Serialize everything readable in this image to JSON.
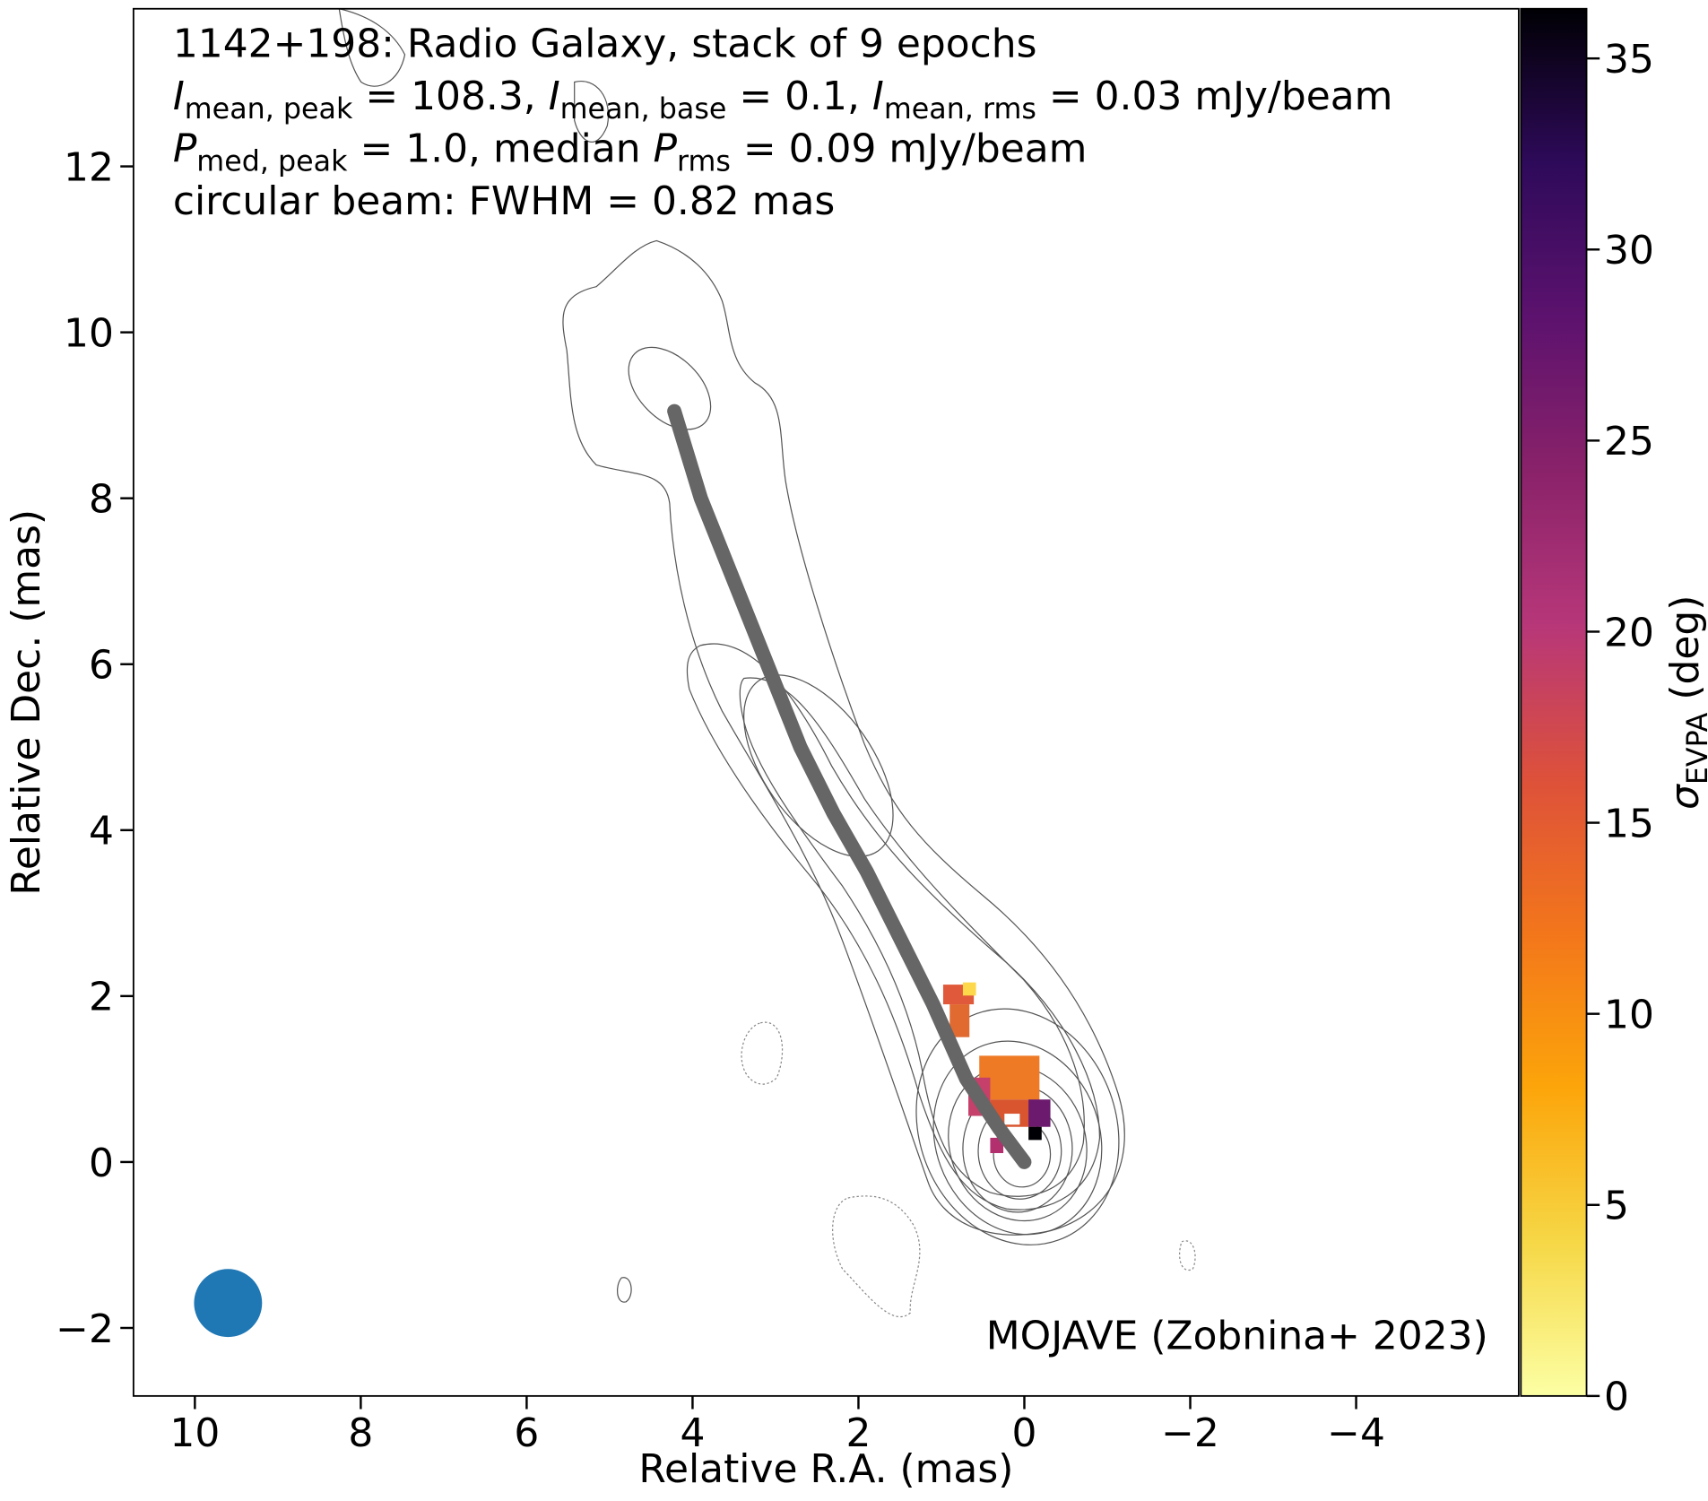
{
  "chart_data": {
    "type": "image",
    "annotation": [
      [
        {
          "text": "1142+198: Radio Galaxy, stack of 9 epochs"
        }
      ],
      [
        {
          "italic": "I"
        },
        {
          "sub": "mean, peak"
        },
        {
          "text": " = 108.3, "
        },
        {
          "italic": "I"
        },
        {
          "sub": "mean, base"
        },
        {
          "text": " = 0.1, "
        },
        {
          "italic": "I"
        },
        {
          "sub": "mean, rms"
        },
        {
          "text": " = 0.03 mJy/beam"
        }
      ],
      [
        {
          "italic": "P"
        },
        {
          "sub": "med, peak"
        },
        {
          "text": " = 1.0, median "
        },
        {
          "italic": "P"
        },
        {
          "sub": "rms"
        },
        {
          "text": " = 0.09 mJy/beam"
        }
      ],
      [
        {
          "text": "circular beam: FWHM = 0.82 mas"
        }
      ]
    ],
    "credit": "MOJAVE (Zobnina+ 2023)",
    "x_label": "Relative R.A. (mas)",
    "y_label": "Relative Dec. (mas)",
    "xlim": [
      10.74,
      -5.96
    ],
    "ylim": [
      -2.82,
      13.9
    ],
    "xticks": [
      10,
      8,
      6,
      4,
      2,
      0,
      {
        "value": -2,
        "label": "−2"
      },
      {
        "value": -4,
        "label": "−4"
      }
    ],
    "yticks": [
      {
        "value": -2,
        "label": "−2"
      },
      0,
      2,
      4,
      6,
      8,
      10,
      12
    ],
    "ridge": {
      "color": "#666666",
      "x": [
        4.22,
        3.9,
        3.5,
        3.1,
        2.7,
        2.3,
        1.9,
        1.5,
        1.1,
        0.7,
        0.3,
        0
      ],
      "y": [
        9.05,
        8.0,
        7.0,
        6.0,
        5.0,
        4.2,
        3.5,
        2.7,
        1.9,
        1.0,
        0.4,
        0
      ]
    },
    "beam": {
      "x": 9.6,
      "y": -1.7,
      "fwhm": 0.82,
      "color": "#1f77b4"
    },
    "colorbar": {
      "label_symbol": "σ",
      "label_sub": "EVPA",
      "label_unit": " (deg)",
      "lim": [
        0,
        36.3
      ],
      "ticks": [
        0,
        5,
        10,
        15,
        20,
        25,
        30,
        35
      ],
      "colormap": [
        "#fcffa4",
        "#f6d746",
        "#fca50a",
        "#f3761b",
        "#dd513a",
        "#b73779",
        "#8a226a",
        "#5c126e",
        "#2e0a5a",
        "#000004"
      ]
    }
  }
}
